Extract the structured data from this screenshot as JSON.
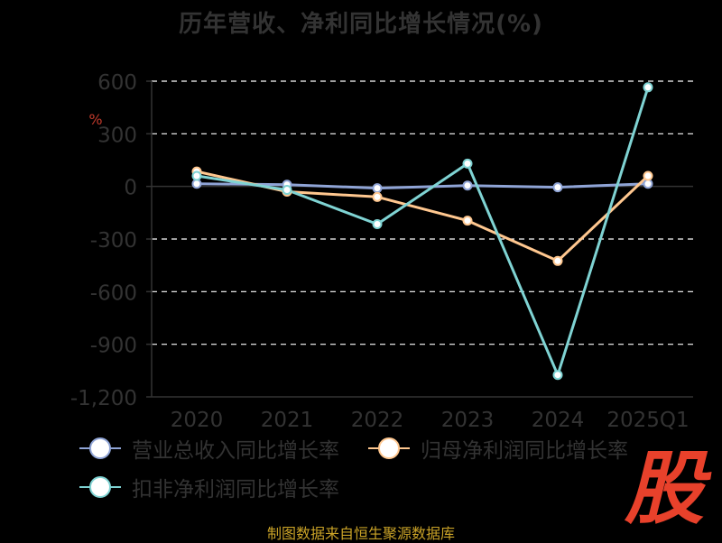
{
  "chart_data": {
    "type": "line",
    "title": "历年营收、净利同比增长情况(%)",
    "y_unit_mark": "%",
    "categories": [
      "2020",
      "2021",
      "2022",
      "2023",
      "2024",
      "2025Q1"
    ],
    "ylim": [
      -1200,
      600
    ],
    "yticks": [
      600,
      300,
      0,
      -300,
      -600,
      -900,
      -1200
    ],
    "ytick_labels": [
      "600",
      "300",
      "0",
      "-300",
      "-600",
      "-900",
      "-1,200"
    ],
    "grid": true,
    "grid_style": "dashed",
    "legend_position": "bottom-left",
    "series": [
      {
        "name": "营业总收入同比增长率",
        "color": "#8fa4d6",
        "values": [
          15,
          10,
          -10,
          5,
          -5,
          15
        ]
      },
      {
        "name": "归母净利润同比增长率",
        "color": "#ffc78f",
        "values": [
          85,
          -30,
          -60,
          -195,
          -425,
          60
        ]
      },
      {
        "name": "扣非净利润同比增长率",
        "color": "#7fd3d3",
        "values": [
          60,
          -20,
          -215,
          130,
          -1075,
          565
        ]
      }
    ]
  },
  "source_note": "制图数据来自恒生聚源数据库",
  "watermark_char": "股"
}
